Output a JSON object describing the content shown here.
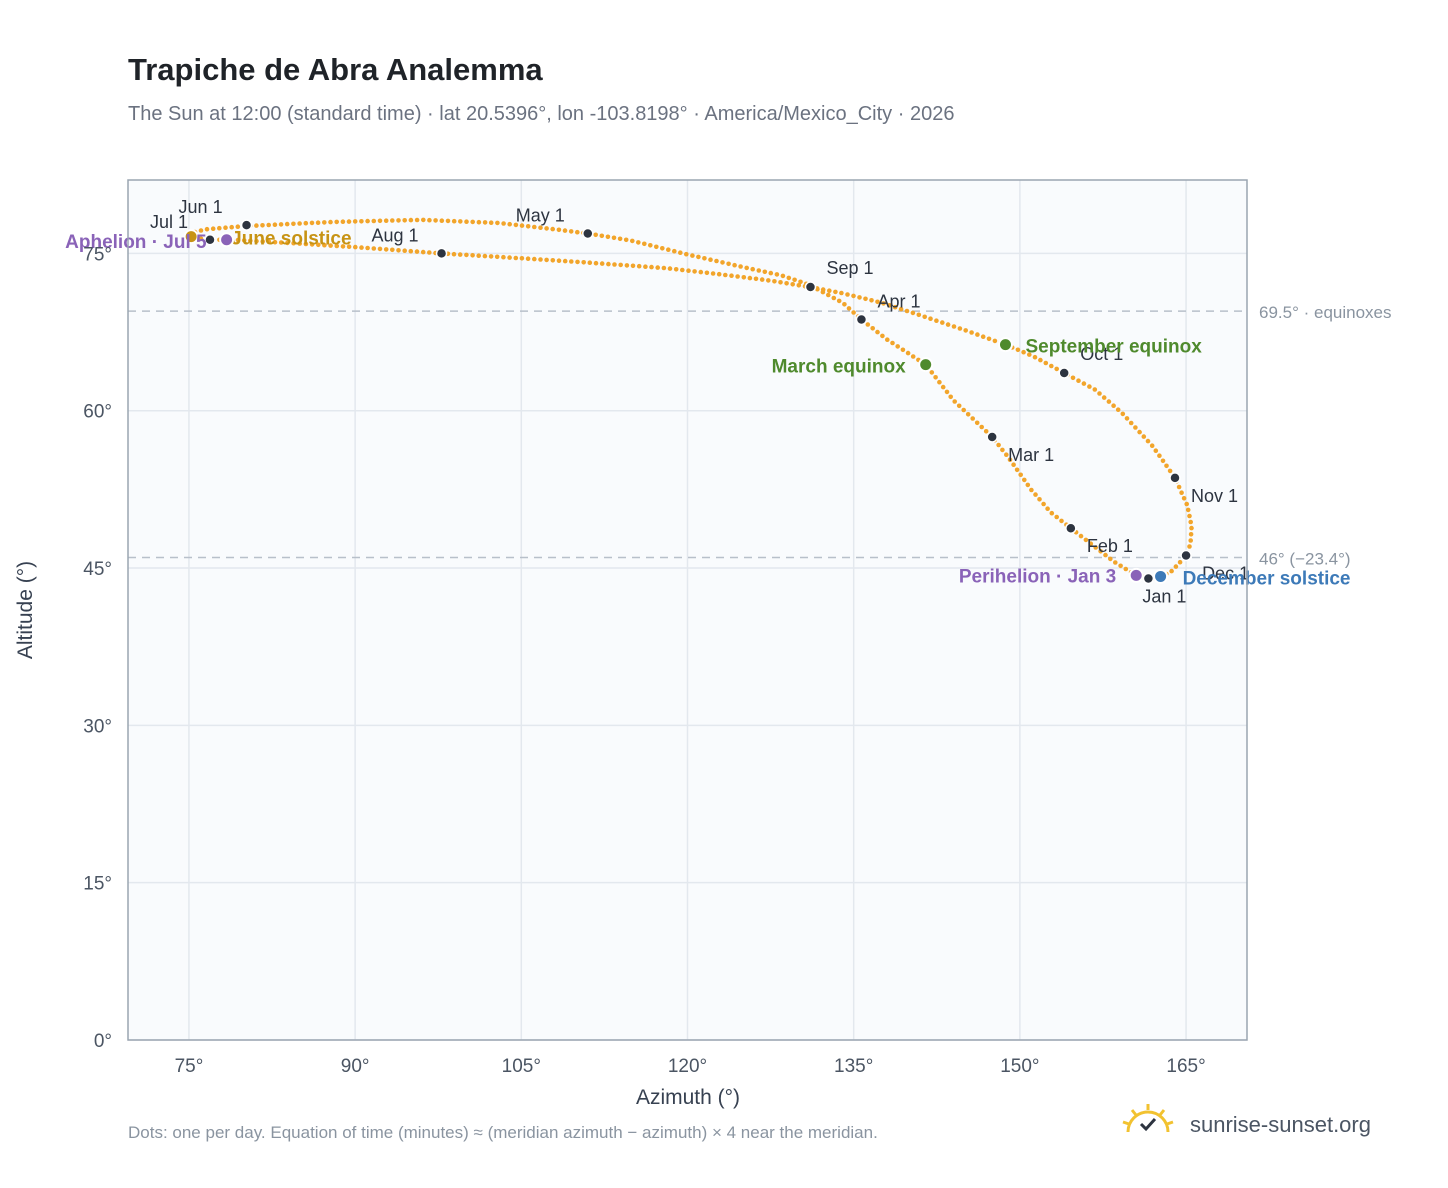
{
  "title": "Trapiche de Abra Analemma",
  "subtitle": "The Sun at 12:00 (standard time) · lat 20.5396°, lon -103.8198° · America/Mexico_City · 2026",
  "footnote": "Dots: one per day. Equation of time (minutes) ≈ (meridian azimuth − azimuth) × 4 near the meridian.",
  "brand": {
    "text": "sunrise-sunset.org",
    "icon": "sun-check-icon"
  },
  "colors": {
    "curve": "#f2a52b",
    "month_dot": "#2d3440",
    "equinox": "#4f8a2d",
    "aphelion": "#8a63b8",
    "december_solstice": "#3d7ab8",
    "june_solstice": "#c79314",
    "reference_line": "#b8c0ca",
    "grid": "#e3e8ee",
    "plot_bg": "#f9fbfd"
  },
  "chart_data": {
    "type": "scatter",
    "xlabel": "Azimuth (°)",
    "ylabel": "Altitude (°)",
    "xlim": [
      69.5,
      170.5
    ],
    "ylim": [
      0,
      82
    ],
    "xticks": [
      75,
      90,
      105,
      120,
      135,
      150,
      165
    ],
    "yticks": [
      0,
      15,
      30,
      45,
      60,
      75
    ],
    "xtick_labels": [
      "75°",
      "90°",
      "105°",
      "120°",
      "135°",
      "150°",
      "165°"
    ],
    "ytick_labels": [
      "0°",
      "15°",
      "30°",
      "45°",
      "60°",
      "75°"
    ],
    "grid": true,
    "series": [
      {
        "points": [
          [
            162.7,
            44.2
          ],
          [
            163.6,
            44.6
          ],
          [
            164.5,
            45.6
          ],
          [
            165.0,
            46.2
          ],
          [
            165.4,
            47.3
          ],
          [
            165.5,
            49.0
          ],
          [
            165.1,
            51.0
          ],
          [
            164.0,
            53.6
          ],
          [
            162.0,
            56.6
          ],
          [
            159.2,
            59.8
          ],
          [
            156.8,
            62.0
          ],
          [
            154.0,
            63.6
          ],
          [
            151.2,
            65.2
          ],
          [
            148.7,
            66.3
          ],
          [
            145.0,
            67.7
          ],
          [
            141.0,
            69.1
          ],
          [
            137.5,
            70.3
          ],
          [
            134.0,
            71.2
          ],
          [
            131.0,
            71.8
          ],
          [
            127.5,
            72.4
          ],
          [
            123.0,
            73.0
          ],
          [
            118.0,
            73.6
          ],
          [
            110.0,
            74.2
          ],
          [
            104.0,
            74.6
          ],
          [
            97.8,
            75.0
          ],
          [
            90.0,
            75.6
          ],
          [
            84.0,
            76.0
          ],
          [
            79.0,
            76.3
          ],
          [
            76.5,
            76.3
          ],
          [
            75.2,
            76.6
          ],
          [
            75.1,
            76.9
          ],
          [
            76.5,
            77.3
          ],
          [
            80.0,
            77.6
          ],
          [
            88.0,
            78.0
          ],
          [
            96.0,
            78.2
          ],
          [
            103.0,
            77.9
          ],
          [
            108.0,
            77.3
          ],
          [
            111.0,
            76.9
          ],
          [
            115.0,
            76.2
          ],
          [
            120.0,
            74.9
          ],
          [
            125.0,
            73.7
          ],
          [
            128.5,
            72.9
          ],
          [
            131.0,
            72.0
          ],
          [
            134.0,
            70.3
          ],
          [
            135.7,
            68.7
          ],
          [
            138.0,
            66.8
          ],
          [
            141.5,
            64.4
          ],
          [
            144.0,
            61.0
          ],
          [
            147.5,
            57.5
          ],
          [
            149.0,
            55.5
          ],
          [
            151.0,
            52.5
          ],
          [
            152.8,
            50.3
          ],
          [
            154.6,
            48.8
          ],
          [
            156.8,
            47.0
          ],
          [
            158.5,
            45.6
          ],
          [
            160.5,
            44.3
          ],
          [
            162.0,
            44.0
          ],
          [
            162.7,
            44.2
          ]
        ]
      }
    ],
    "month_markers": [
      {
        "label": "Jan 1",
        "x": 161.6,
        "y": 44.0
      },
      {
        "label": "Feb 1",
        "x": 154.6,
        "y": 48.8
      },
      {
        "label": "Mar 1",
        "x": 147.5,
        "y": 57.5
      },
      {
        "label": "Apr 1",
        "x": 135.7,
        "y": 68.7
      },
      {
        "label": "May 1",
        "x": 111.0,
        "y": 76.9
      },
      {
        "label": "Jun 1",
        "x": 80.2,
        "y": 77.7
      },
      {
        "label": "Jul 1",
        "x": 76.9,
        "y": 76.3
      },
      {
        "label": "Aug 1",
        "x": 97.8,
        "y": 75.0
      },
      {
        "label": "Sep 1",
        "x": 131.1,
        "y": 71.8
      },
      {
        "label": "Oct 1",
        "x": 154.0,
        "y": 63.6
      },
      {
        "label": "Nov 1",
        "x": 164.0,
        "y": 53.6
      },
      {
        "label": "Dec 1",
        "x": 165.0,
        "y": 46.2
      }
    ],
    "special_points": [
      {
        "label": "March equinox",
        "x": 141.5,
        "y": 64.4,
        "color_key": "equinox"
      },
      {
        "label": "September equinox",
        "x": 148.7,
        "y": 66.3,
        "color_key": "equinox"
      },
      {
        "label": "December solstice",
        "x": 162.7,
        "y": 44.2,
        "color_key": "december_solstice"
      },
      {
        "label": "June solstice",
        "x": 75.2,
        "y": 76.6,
        "color_key": "june_solstice"
      },
      {
        "label": "Perihelion · Jan 3",
        "x": 160.5,
        "y": 44.3,
        "color_key": "aphelion"
      },
      {
        "label": "Aphelion · Jul 5",
        "x": 78.4,
        "y": 76.3,
        "color_key": "aphelion"
      }
    ],
    "reference_lines": [
      {
        "y": 69.5,
        "label": "69.5° · equinoxes"
      },
      {
        "y": 46,
        "label": "46° (−23.4°)"
      }
    ]
  }
}
